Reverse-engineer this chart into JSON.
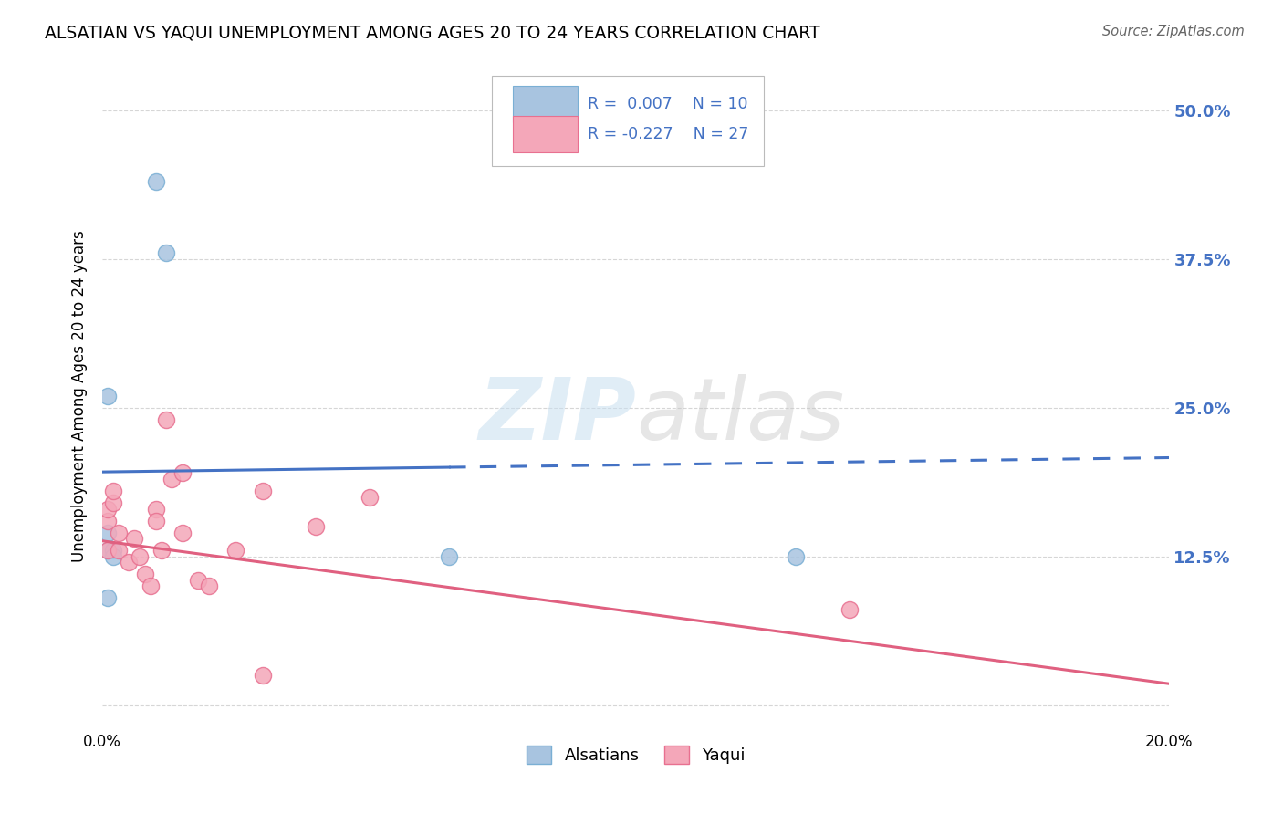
{
  "title": "ALSATIAN VS YAQUI UNEMPLOYMENT AMONG AGES 20 TO 24 YEARS CORRELATION CHART",
  "source": "Source: ZipAtlas.com",
  "ylabel": "Unemployment Among Ages 20 to 24 years",
  "xlim": [
    0.0,
    0.2
  ],
  "ylim": [
    -0.02,
    0.54
  ],
  "yticks": [
    0.0,
    0.125,
    0.25,
    0.375,
    0.5
  ],
  "ytick_labels": [
    "",
    "12.5%",
    "25.0%",
    "37.5%",
    "50.0%"
  ],
  "xticks": [
    0.0,
    0.04,
    0.08,
    0.12,
    0.16,
    0.2
  ],
  "alsatian_color": "#a8c4e0",
  "alsatian_edge": "#7aafd4",
  "yaqui_color": "#f4a7b9",
  "yaqui_edge": "#e87090",
  "trend_alsatian_color": "#4472c4",
  "trend_yaqui_color": "#e06080",
  "legend_R_color": "#4472c4",
  "alsatian_x": [
    0.01,
    0.012,
    0.001,
    0.001,
    0.001,
    0.002,
    0.002,
    0.001,
    0.065,
    0.13
  ],
  "alsatian_y": [
    0.44,
    0.38,
    0.26,
    0.145,
    0.13,
    0.13,
    0.125,
    0.09,
    0.125,
    0.125
  ],
  "yaqui_x": [
    0.001,
    0.001,
    0.001,
    0.002,
    0.002,
    0.003,
    0.003,
    0.005,
    0.006,
    0.007,
    0.008,
    0.009,
    0.01,
    0.01,
    0.011,
    0.012,
    0.013,
    0.015,
    0.018,
    0.02,
    0.025,
    0.03,
    0.04,
    0.05,
    0.14,
    0.03,
    0.015
  ],
  "yaqui_y": [
    0.13,
    0.155,
    0.165,
    0.17,
    0.18,
    0.13,
    0.145,
    0.12,
    0.14,
    0.125,
    0.11,
    0.1,
    0.165,
    0.155,
    0.13,
    0.24,
    0.19,
    0.145,
    0.105,
    0.1,
    0.13,
    0.18,
    0.15,
    0.175,
    0.08,
    0.025,
    0.195
  ],
  "alsatian_R": 0.007,
  "alsatian_N": 10,
  "yaqui_R": -0.227,
  "yaqui_N": 27,
  "marker_size": 170,
  "watermark_zip": "ZIP",
  "watermark_atlas": "atlas",
  "background_color": "#ffffff",
  "grid_color": "#cccccc",
  "alsatian_trend_y0": 0.196,
  "alsatian_trend_y1": 0.208,
  "alsatian_solid_xend": 0.065,
  "yaqui_trend_y0": 0.138,
  "yaqui_trend_y1": 0.018
}
